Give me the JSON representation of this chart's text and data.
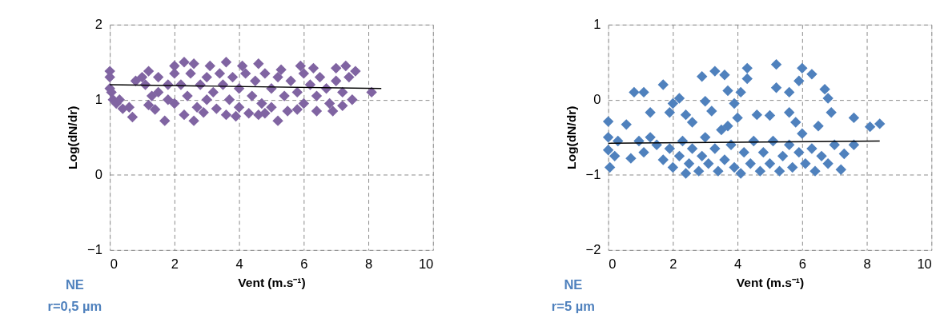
{
  "chart_data": [
    {
      "type": "scatter",
      "xlabel": "Vent (m.s⁻¹)",
      "ylabel": "Log(dN/dr)",
      "annotations": [
        "NE",
        "r=0,5 µm"
      ],
      "xlim": [
        0,
        10
      ],
      "ylim": [
        -1,
        2
      ],
      "xticks": [
        0,
        2,
        4,
        6,
        8,
        10
      ],
      "yticks": [
        -1,
        0,
        1,
        2
      ],
      "grid": true,
      "legend": false,
      "series": [
        {
          "color": "#8064a2",
          "marker": "diamond",
          "x": [
            0.0,
            0.0,
            0.0,
            0.05,
            0.1,
            0.2,
            0.3,
            0.6,
            0.7,
            0.4,
            0.8,
            1.0,
            1.2,
            1.1,
            1.7,
            2.6,
            5.2,
            4.3,
            3.6,
            2.9,
            1.4,
            2.0,
            2.3,
            2.6,
            3.1,
            3.6,
            4.1,
            4.6,
            5.3,
            5.9,
            6.3,
            7.0,
            7.3,
            7.6,
            6.4,
            6.9,
            7.2,
            5.8,
            4.8,
            8.1,
            1.5,
            1.5,
            1.8,
            1.8,
            2.0,
            2.0,
            2.2,
            2.4,
            2.5,
            2.7,
            2.8,
            3.0,
            3.0,
            3.2,
            3.3,
            3.4,
            3.5,
            3.7,
            3.8,
            4.0,
            4.0,
            4.2,
            4.4,
            4.5,
            4.7,
            4.8,
            5.0,
            5.0,
            5.2,
            5.4,
            5.5,
            5.6,
            5.8,
            6.0,
            6.0,
            6.2,
            6.4,
            6.5,
            6.7,
            6.8,
            7.0,
            7.2,
            7.4,
            7.5,
            1.3,
            1.2,
            2.3,
            3.9,
            4.6
          ],
          "values": [
            1.38,
            1.3,
            1.15,
            1.1,
            1.0,
            0.95,
            1.0,
            0.9,
            0.77,
            0.88,
            1.25,
            1.3,
            1.38,
            1.2,
            0.72,
            0.72,
            0.72,
            0.82,
            0.8,
            0.83,
            0.87,
            1.45,
            1.5,
            1.48,
            1.45,
            1.5,
            1.45,
            1.48,
            1.4,
            1.45,
            1.42,
            1.42,
            1.45,
            1.38,
            0.85,
            0.85,
            0.92,
            0.87,
            0.82,
            1.1,
            1.3,
            1.1,
            1.2,
            1.0,
            1.35,
            0.95,
            1.2,
            1.05,
            1.35,
            0.9,
            1.2,
            1.3,
            1.0,
            1.1,
            0.88,
            1.35,
            1.2,
            1.0,
            1.3,
            1.15,
            0.9,
            1.35,
            1.05,
            1.25,
            0.95,
            1.35,
            1.15,
            0.9,
            1.3,
            1.05,
            0.85,
            1.25,
            1.1,
            1.35,
            0.95,
            1.2,
            1.05,
            1.3,
            1.15,
            0.95,
            1.25,
            1.1,
            1.3,
            1.0,
            1.05,
            0.93,
            0.8,
            0.78,
            0.8
          ]
        },
        {
          "type": "line",
          "color": "#000000",
          "line_style": "solid",
          "marker": "none",
          "x": [
            0,
            8.4
          ],
          "values": [
            1.2,
            1.15
          ]
        }
      ]
    },
    {
      "type": "scatter",
      "xlabel": "Vent (m.s⁻¹)",
      "ylabel": "Log(dN/dr)",
      "annotations": [
        "NE",
        "r=5 µm"
      ],
      "xlim": [
        0,
        10
      ],
      "ylim": [
        -2,
        1
      ],
      "xticks": [
        0,
        2,
        4,
        6,
        8,
        10
      ],
      "yticks": [
        -2,
        -1,
        0,
        1
      ],
      "grid": true,
      "legend": false,
      "series": [
        {
          "color": "#4f81bd",
          "marker": "diamond",
          "x": [
            0.8,
            1.1,
            1.7,
            2.9,
            3.3,
            3.6,
            4.3,
            4.3,
            5.2,
            6.0,
            6.3,
            5.9,
            5.2,
            5.6,
            6.7,
            6.8,
            3.7,
            4.1,
            2.2,
            2.0,
            0.0,
            0.56,
            1.3,
            6.9,
            7.6,
            8.1,
            8.4,
            5.0,
            5.6,
            4.0,
            3.0,
            3.9,
            1.9,
            0.0,
            0.05,
            0.0,
            0.7,
            0.95,
            2.4,
            4.1,
            7.2,
            7.3,
            7.6,
            1.5,
            1.7,
            1.9,
            2.0,
            2.2,
            2.3,
            2.5,
            2.6,
            2.8,
            2.9,
            3.0,
            3.1,
            3.3,
            3.4,
            3.5,
            3.6,
            3.8,
            3.9,
            4.2,
            4.4,
            4.5,
            4.7,
            4.8,
            5.0,
            5.1,
            5.3,
            5.4,
            5.6,
            5.7,
            5.9,
            6.0,
            6.1,
            6.3,
            6.4,
            6.6,
            6.8,
            7.0,
            1.3,
            1.1,
            2.6,
            2.4,
            3.2,
            3.7,
            4.6,
            6.5,
            5.8,
            0.3,
            0.2
          ],
          "values": [
            0.1,
            0.1,
            0.2,
            0.31,
            0.38,
            0.33,
            0.42,
            0.28,
            0.47,
            0.42,
            0.34,
            0.25,
            0.16,
            0.1,
            0.14,
            0.02,
            0.12,
            0.1,
            0.02,
            -0.05,
            -0.29,
            -0.33,
            -0.17,
            -0.17,
            -0.24,
            -0.36,
            -0.32,
            -0.21,
            -0.17,
            -0.24,
            -0.02,
            -0.05,
            -0.17,
            -0.5,
            -0.9,
            -0.67,
            -0.78,
            -0.55,
            -0.98,
            -0.98,
            -0.93,
            -0.72,
            -0.6,
            -0.6,
            -0.8,
            -0.65,
            -0.9,
            -0.75,
            -0.55,
            -0.85,
            -0.65,
            -0.95,
            -0.75,
            -0.5,
            -0.85,
            -0.65,
            -0.95,
            -0.4,
            -0.8,
            -0.6,
            -0.9,
            -0.7,
            -0.85,
            -0.55,
            -0.95,
            -0.7,
            -0.85,
            -0.55,
            -0.95,
            -0.75,
            -0.6,
            -0.9,
            -0.7,
            -0.45,
            -0.85,
            -0.65,
            -0.95,
            -0.75,
            -0.85,
            -0.6,
            -0.5,
            -0.7,
            -0.3,
            -0.2,
            -0.15,
            -0.35,
            -0.2,
            -0.35,
            -0.3,
            -0.55,
            -0.75
          ]
        },
        {
          "type": "line",
          "color": "#000000",
          "line_style": "solid",
          "marker": "none",
          "x": [
            0,
            8.4
          ],
          "values": [
            -0.58,
            -0.55
          ]
        }
      ]
    }
  ]
}
